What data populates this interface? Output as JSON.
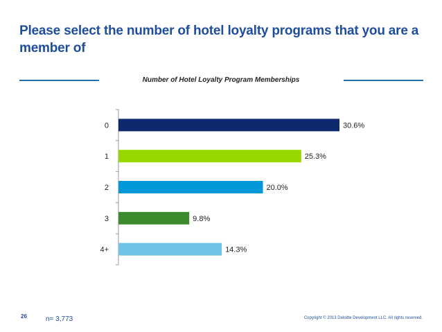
{
  "slide": {
    "title": "Please select the number of hotel loyalty programs that you are a member of",
    "page_number": "26",
    "sample_size": "n= 3,773",
    "copyright": "Copyright © 2013 Deloitte Development LLC. All rights reserved."
  },
  "chart_data": {
    "type": "bar",
    "orientation": "horizontal",
    "title": "Number of Hotel Loyalty Program Memberships",
    "categories": [
      "0",
      "1",
      "2",
      "3",
      "4+"
    ],
    "values": [
      30.6,
      25.3,
      20.0,
      9.8,
      14.3
    ],
    "value_labels": [
      "30.6%",
      "25.3%",
      "20.0%",
      "9.8%",
      "14.3%"
    ],
    "colors": [
      "#0d2a6e",
      "#97d700",
      "#0098d8",
      "#3b8a2e",
      "#6ec3e6"
    ],
    "xlim": [
      0,
      30.6
    ],
    "xlabel": "",
    "ylabel": ""
  }
}
